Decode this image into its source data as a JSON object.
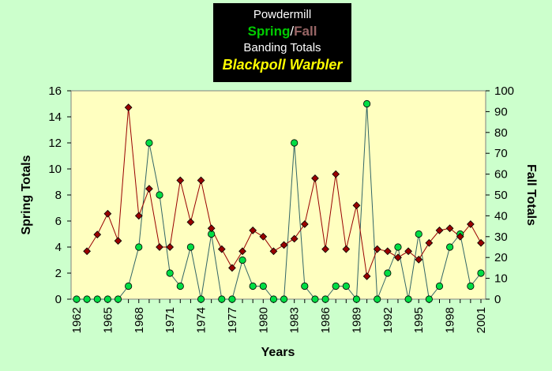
{
  "title": {
    "line1": "Powdermill",
    "spring": "Spring",
    "sep": "/",
    "fall": "Fall",
    "line3": "Banding Totals",
    "line4": "Blackpoll Warbler"
  },
  "colors": {
    "background": "#ccffcc",
    "plot_area": "#ffffc0",
    "spring": "#00dd44",
    "spring_line": "#336666",
    "fall": "#990000",
    "title_box": "#000000",
    "title_spring": "#00cc00",
    "title_fall": "#996666",
    "title_species": "#ffff00"
  },
  "chart_data": {
    "type": "line",
    "xlabel": "Years",
    "ylabel_left": "Spring Totals",
    "ylabel_right": "Fall Totals",
    "x": [
      1962,
      1963,
      1964,
      1965,
      1966,
      1967,
      1968,
      1969,
      1970,
      1971,
      1972,
      1973,
      1974,
      1975,
      1976,
      1977,
      1978,
      1979,
      1980,
      1981,
      1982,
      1983,
      1984,
      1985,
      1986,
      1987,
      1988,
      1989,
      1990,
      1991,
      1992,
      1993,
      1994,
      1995,
      1996,
      1997,
      1998,
      1999,
      2000,
      2001
    ],
    "x_tick_labels": [
      "1962",
      "1965",
      "1968",
      "1971",
      "1974",
      "1977",
      "1980",
      "1983",
      "1986",
      "1989",
      "1992",
      "1995",
      "1998",
      "2001"
    ],
    "xlim": [
      1962,
      2001
    ],
    "ylim_left": [
      0,
      16
    ],
    "yticks_left": [
      0,
      2,
      4,
      6,
      8,
      10,
      12,
      14,
      16
    ],
    "ylim_right": [
      0,
      100
    ],
    "yticks_right": [
      0,
      10,
      20,
      30,
      40,
      50,
      60,
      70,
      80,
      90,
      100
    ],
    "grid": false,
    "series": [
      {
        "name": "Spring",
        "axis": "left",
        "marker": "circle",
        "values": [
          0,
          0,
          0,
          0,
          0,
          1,
          4,
          12,
          8,
          2,
          1,
          4,
          0,
          5,
          0,
          0,
          3,
          1,
          1,
          0,
          0,
          12,
          1,
          0,
          0,
          1,
          1,
          0,
          15,
          0,
          2,
          4,
          0,
          5,
          0,
          1,
          4,
          5,
          1,
          2
        ]
      },
      {
        "name": "Fall",
        "axis": "right",
        "marker": "diamond",
        "values": [
          null,
          23,
          31,
          41,
          28,
          92,
          40,
          53,
          25,
          25,
          57,
          37,
          57,
          34,
          24,
          15,
          23,
          33,
          30,
          23,
          26,
          29,
          36,
          58,
          24,
          60,
          24,
          45,
          11,
          24,
          23,
          20,
          23,
          19,
          27,
          33,
          34,
          30,
          36,
          27
        ]
      }
    ]
  }
}
